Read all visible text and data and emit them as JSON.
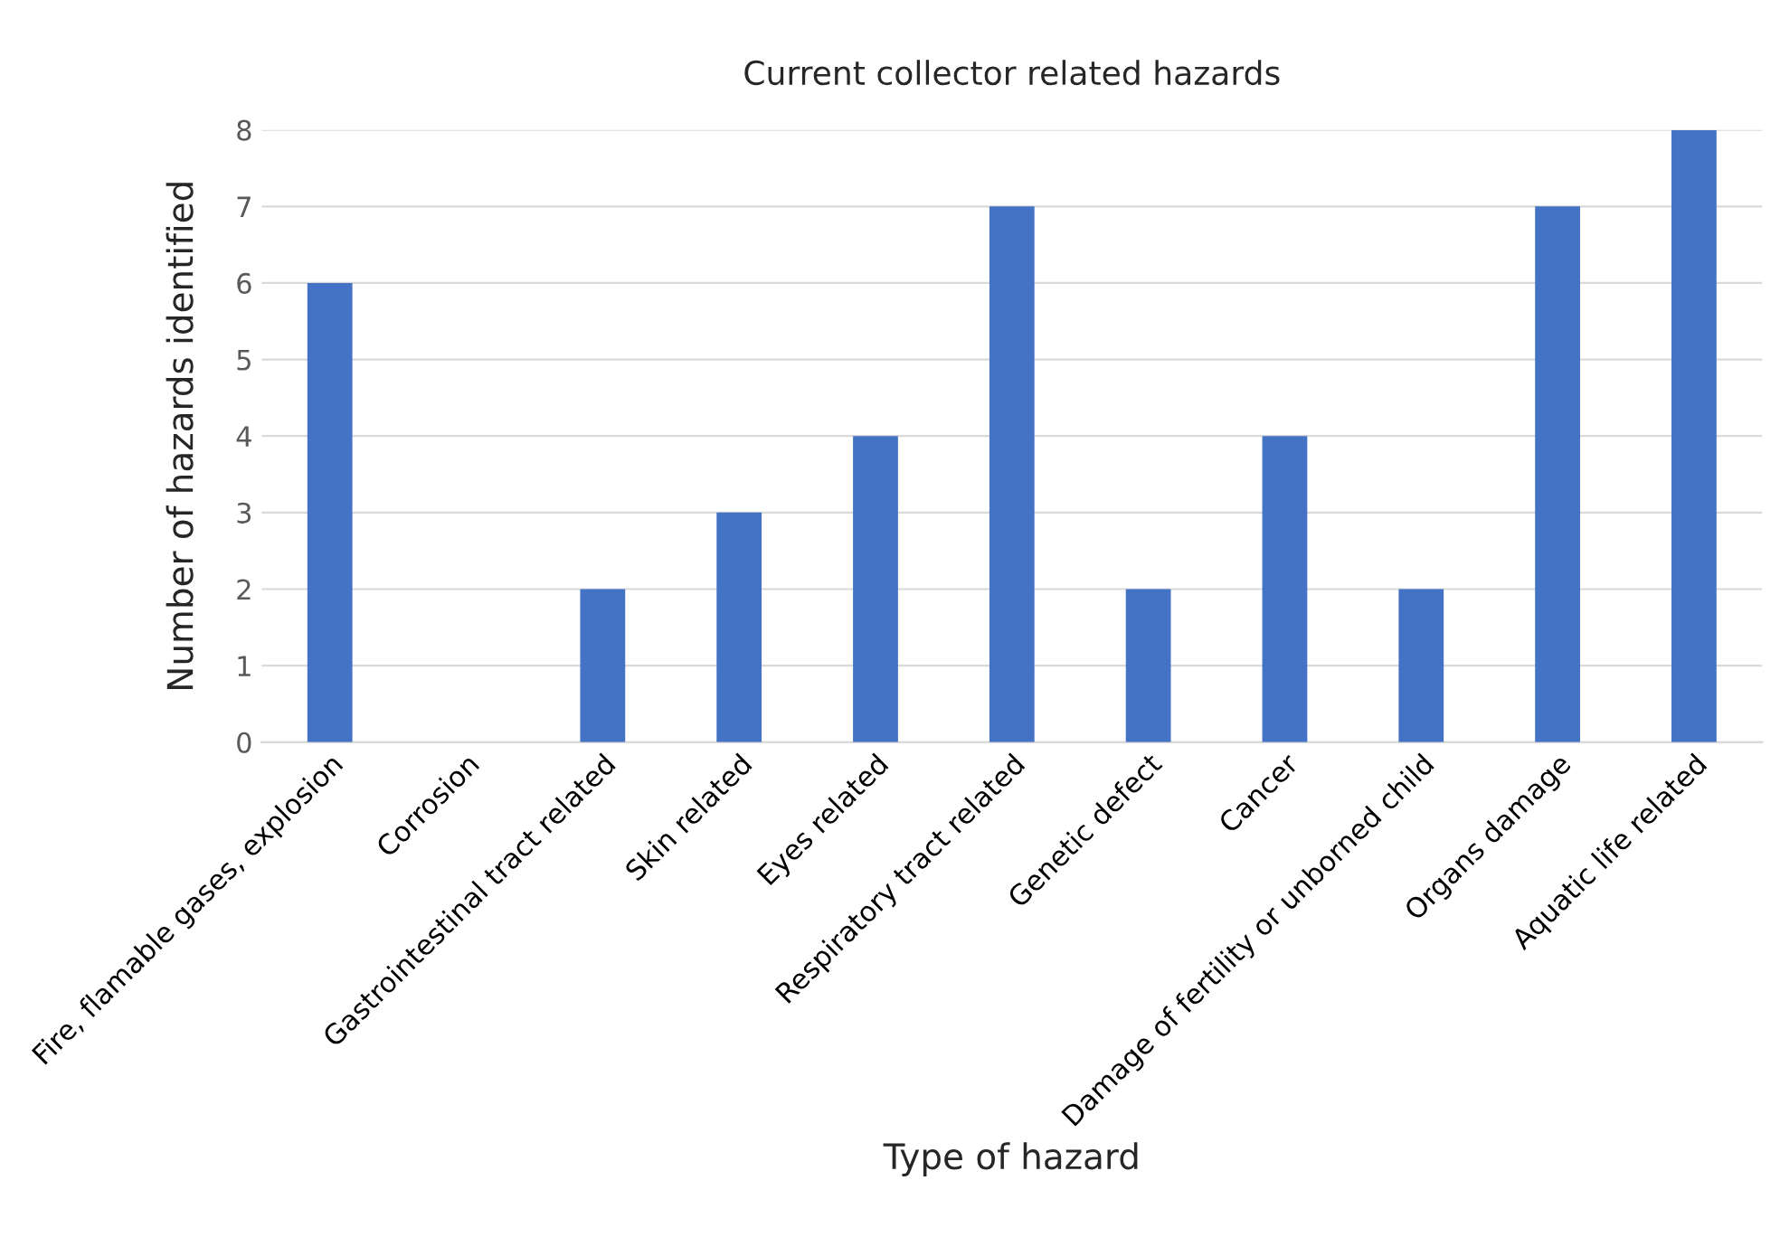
{
  "chart_data": {
    "type": "bar",
    "title": "Current collector related hazards",
    "xlabel": "Type of hazard",
    "ylabel": "Number of hazards identified",
    "categories": [
      "Fire, flamable gases, explosion",
      "Corrosion",
      "Gastrointestinal tract related",
      "Skin related",
      "Eyes related",
      "Respiratory tract related",
      "Genetic defect",
      "Cancer",
      "Damage of fertility or unborned child",
      "Organs damage",
      "Aquatic life related"
    ],
    "values": [
      6,
      0,
      2,
      3,
      4,
      7,
      2,
      4,
      2,
      7,
      8
    ],
    "color": "#4472c4",
    "ylim": [
      0,
      8
    ],
    "yticks": [
      0,
      1,
      2,
      3,
      4,
      5,
      6,
      7,
      8
    ],
    "grid": "y"
  }
}
